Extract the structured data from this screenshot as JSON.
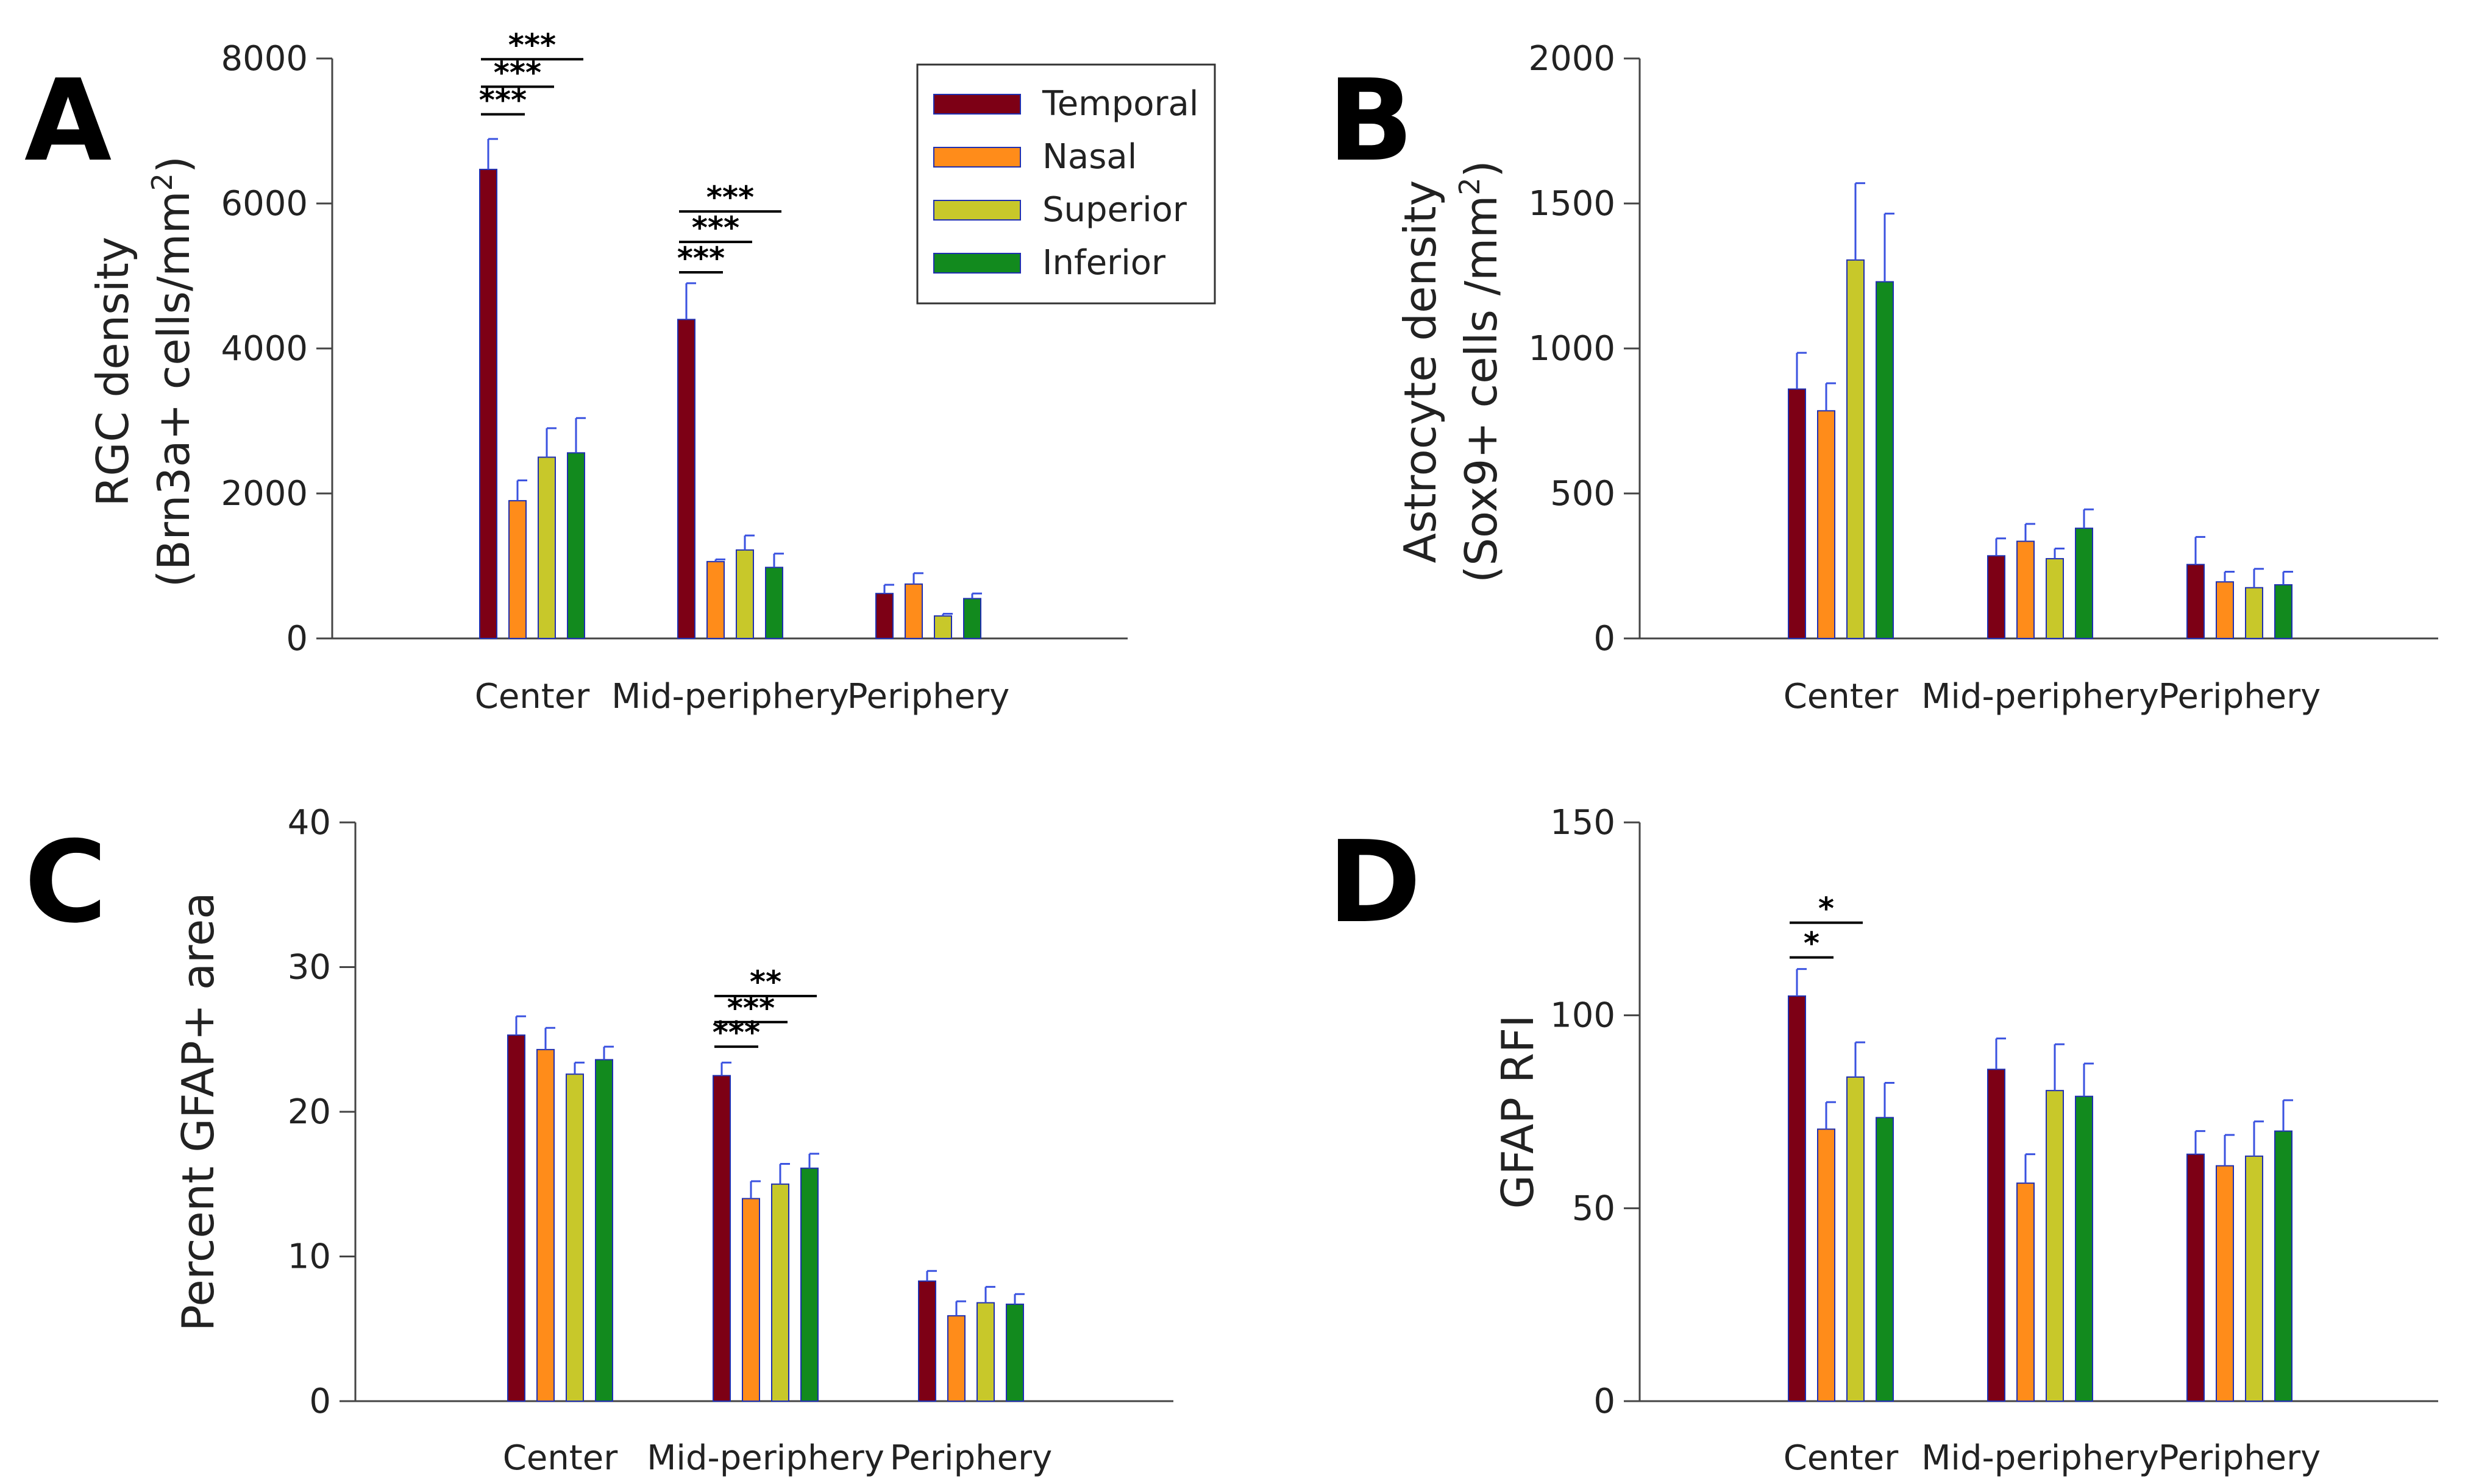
{
  "figure": {
    "series_names": [
      "Temporal",
      "Nasal",
      "Superior",
      "Inferior"
    ],
    "series_colors": [
      "#7d0015",
      "#ff8c1a",
      "#c8c82a",
      "#128a1e"
    ],
    "error_bar_color": "#3a52e0"
  },
  "chart_data": [
    {
      "type": "bar",
      "panel": "A",
      "ylabel_line1": "RGC density",
      "ylabel_line2_pre": "(Brn3a+ cells/mm",
      "ylabel_sup": "2",
      "ylabel_line2_post": ")",
      "ylim": [
        0,
        8000
      ],
      "yticks": [
        0,
        2000,
        4000,
        6000,
        8000
      ],
      "categories": [
        "Center",
        "Mid-periphery",
        "Periphery"
      ],
      "legend": {
        "position": "top-right",
        "entries": [
          "Temporal",
          "Nasal",
          "Superior",
          "Inferior"
        ]
      },
      "series": [
        {
          "name": "Temporal",
          "values": [
            6470,
            4400,
            620
          ],
          "errors": [
            420,
            500,
            120
          ]
        },
        {
          "name": "Nasal",
          "values": [
            1900,
            1060,
            750
          ],
          "errors": [
            280,
            30,
            150
          ]
        },
        {
          "name": "Superior",
          "values": [
            2500,
            1220,
            310
          ],
          "errors": [
            400,
            200,
            30
          ]
        },
        {
          "name": "Inferior",
          "values": [
            2560,
            980,
            550
          ],
          "errors": [
            480,
            190,
            70
          ]
        }
      ],
      "significance": [
        {
          "label": "***",
          "category": 0,
          "from": 0,
          "to": 1,
          "value": 7230
        },
        {
          "label": "***",
          "category": 0,
          "from": 0,
          "to": 2,
          "value": 7610
        },
        {
          "label": "***",
          "category": 0,
          "from": 0,
          "to": 3,
          "value": 7990
        },
        {
          "label": "***",
          "category": 1,
          "from": 0,
          "to": 1,
          "value": 5050
        },
        {
          "label": "***",
          "category": 1,
          "from": 0,
          "to": 2,
          "value": 5470
        },
        {
          "label": "***",
          "category": 1,
          "from": 0,
          "to": 3,
          "value": 5890
        }
      ]
    },
    {
      "type": "bar",
      "panel": "B",
      "ylabel_line1": "Astrocyte density",
      "ylabel_line2_pre": "(Sox9+ cells /mm",
      "ylabel_sup": "2",
      "ylabel_line2_post": ")",
      "ylim": [
        0,
        2000
      ],
      "yticks": [
        0,
        500,
        1000,
        1500,
        2000
      ],
      "categories": [
        "Center",
        "Mid-periphery",
        "Periphery"
      ],
      "series": [
        {
          "name": "Temporal",
          "values": [
            860,
            285,
            255
          ],
          "errors": [
            125,
            60,
            95
          ]
        },
        {
          "name": "Nasal",
          "values": [
            785,
            335,
            195
          ],
          "errors": [
            95,
            60,
            35
          ]
        },
        {
          "name": "Superior",
          "values": [
            1305,
            275,
            175
          ],
          "errors": [
            265,
            35,
            65
          ]
        },
        {
          "name": "Inferior",
          "values": [
            1230,
            380,
            185
          ],
          "errors": [
            235,
            65,
            45
          ]
        }
      ],
      "significance": []
    },
    {
      "type": "bar",
      "panel": "C",
      "ylabel_line1": "Percent GFAP+ area",
      "ylim": [
        0,
        40
      ],
      "yticks": [
        0,
        10,
        20,
        30,
        40
      ],
      "categories": [
        "Center",
        "Mid-periphery",
        "Periphery"
      ],
      "series": [
        {
          "name": "Temporal",
          "values": [
            25.3,
            22.5,
            8.3
          ],
          "errors": [
            1.3,
            0.9,
            0.7
          ]
        },
        {
          "name": "Nasal",
          "values": [
            24.3,
            14.0,
            5.9
          ],
          "errors": [
            1.5,
            1.2,
            1.0
          ]
        },
        {
          "name": "Superior",
          "values": [
            22.6,
            15.0,
            6.8
          ],
          "errors": [
            0.8,
            1.4,
            1.1
          ]
        },
        {
          "name": "Inferior",
          "values": [
            23.6,
            16.1,
            6.7
          ],
          "errors": [
            0.9,
            1.0,
            0.7
          ]
        }
      ],
      "significance": [
        {
          "label": "***",
          "category": 1,
          "from": 0,
          "to": 1,
          "value": 24.5
        },
        {
          "label": "***",
          "category": 1,
          "from": 0,
          "to": 2,
          "value": 26.2
        },
        {
          "label": "**",
          "category": 1,
          "from": 0,
          "to": 3,
          "value": 28.0
        }
      ]
    },
    {
      "type": "bar",
      "panel": "D",
      "ylabel_line1": "GFAP RFI",
      "ylim": [
        0,
        150
      ],
      "yticks": [
        0,
        50,
        100,
        150
      ],
      "categories": [
        "Center",
        "Mid-periphery",
        "Periphery"
      ],
      "series": [
        {
          "name": "Temporal",
          "values": [
            105,
            86,
            64
          ],
          "errors": [
            7,
            8,
            6
          ]
        },
        {
          "name": "Nasal",
          "values": [
            70.5,
            56.5,
            61
          ],
          "errors": [
            7,
            7.5,
            8
          ]
        },
        {
          "name": "Superior",
          "values": [
            84,
            80.5,
            63.5
          ],
          "errors": [
            9,
            12,
            9
          ]
        },
        {
          "name": "Inferior",
          "values": [
            73.5,
            79,
            70
          ],
          "errors": [
            9,
            8.5,
            8
          ]
        }
      ],
      "significance": [
        {
          "label": "*",
          "category": 0,
          "from": 0,
          "to": 1,
          "value": 115
        },
        {
          "label": "*",
          "category": 0,
          "from": 0,
          "to": 2,
          "value": 124
        }
      ]
    }
  ]
}
